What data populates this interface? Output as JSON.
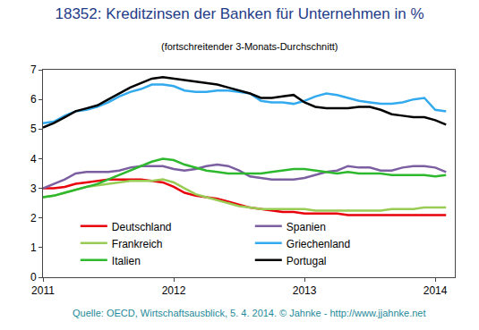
{
  "chart_data": {
    "type": "line",
    "title": "18352: Kreditzinsen der Banken für Unternehmen in %",
    "subtitle": "(fortschreitender 3-Monats-Durchschnitt)",
    "source": "Quelle: OECD, Wirtschaftsausblick, 5. 4. 2014. © Jahnke - http://www.jjahnke.net",
    "x": [
      2011,
      2011.083,
      2011.167,
      2011.25,
      2011.333,
      2011.417,
      2011.5,
      2011.583,
      2011.667,
      2011.75,
      2011.833,
      2011.917,
      2012,
      2012.083,
      2012.167,
      2012.25,
      2012.333,
      2012.417,
      2012.5,
      2012.583,
      2012.667,
      2012.75,
      2012.833,
      2012.917,
      2013,
      2013.083,
      2013.167,
      2013.25,
      2013.333,
      2013.417,
      2013.5,
      2013.583,
      2013.667,
      2013.75,
      2013.833,
      2013.917,
      2014,
      2014.083
    ],
    "series": [
      {
        "name": "Deutschland",
        "color": "#e8000b",
        "values": [
          3.0,
          3.0,
          3.05,
          3.15,
          3.2,
          3.25,
          3.3,
          3.3,
          3.3,
          3.3,
          3.25,
          3.2,
          3.05,
          2.85,
          2.75,
          2.7,
          2.65,
          2.55,
          2.45,
          2.35,
          2.3,
          2.25,
          2.2,
          2.2,
          2.15,
          2.15,
          2.15,
          2.15,
          2.1,
          2.1,
          2.1,
          2.1,
          2.1,
          2.1,
          2.1,
          2.1,
          2.1,
          2.1
        ]
      },
      {
        "name": "Spanien",
        "color": "#7b5fa0",
        "values": [
          3.0,
          3.15,
          3.3,
          3.5,
          3.55,
          3.55,
          3.55,
          3.6,
          3.7,
          3.75,
          3.75,
          3.75,
          3.65,
          3.6,
          3.65,
          3.75,
          3.8,
          3.75,
          3.6,
          3.4,
          3.35,
          3.3,
          3.3,
          3.3,
          3.35,
          3.45,
          3.55,
          3.6,
          3.75,
          3.7,
          3.7,
          3.6,
          3.6,
          3.7,
          3.75,
          3.75,
          3.7,
          3.55
        ]
      },
      {
        "name": "Frankreich",
        "color": "#99cc55",
        "values": [
          2.7,
          2.75,
          2.85,
          2.95,
          3.05,
          3.1,
          3.15,
          3.2,
          3.25,
          3.25,
          3.25,
          3.3,
          3.2,
          3.0,
          2.8,
          2.7,
          2.6,
          2.5,
          2.4,
          2.35,
          2.3,
          2.3,
          2.3,
          2.3,
          2.3,
          2.25,
          2.25,
          2.25,
          2.25,
          2.25,
          2.25,
          2.25,
          2.3,
          2.3,
          2.3,
          2.35,
          2.35,
          2.35
        ]
      },
      {
        "name": "Griechenland",
        "color": "#33aaee",
        "values": [
          5.2,
          5.25,
          5.45,
          5.6,
          5.65,
          5.75,
          5.9,
          6.1,
          6.25,
          6.35,
          6.5,
          6.5,
          6.45,
          6.3,
          6.25,
          6.25,
          6.3,
          6.3,
          6.25,
          6.2,
          5.95,
          5.9,
          5.9,
          5.85,
          5.95,
          6.1,
          6.2,
          6.15,
          6.05,
          5.95,
          5.9,
          5.85,
          5.85,
          5.9,
          6.0,
          6.05,
          5.65,
          5.6
        ]
      },
      {
        "name": "Italien",
        "color": "#2eb82e",
        "values": [
          2.7,
          2.75,
          2.85,
          2.95,
          3.05,
          3.15,
          3.3,
          3.45,
          3.6,
          3.75,
          3.9,
          4.0,
          3.95,
          3.8,
          3.7,
          3.6,
          3.55,
          3.5,
          3.5,
          3.5,
          3.5,
          3.55,
          3.6,
          3.65,
          3.65,
          3.6,
          3.55,
          3.5,
          3.55,
          3.5,
          3.5,
          3.5,
          3.45,
          3.45,
          3.45,
          3.45,
          3.4,
          3.45
        ]
      },
      {
        "name": "Portugal",
        "color": "#000000",
        "values": [
          5.05,
          5.2,
          5.4,
          5.6,
          5.7,
          5.8,
          6.0,
          6.2,
          6.4,
          6.55,
          6.7,
          6.75,
          6.7,
          6.65,
          6.6,
          6.55,
          6.5,
          6.4,
          6.3,
          6.2,
          6.05,
          6.05,
          6.1,
          6.15,
          5.9,
          5.75,
          5.7,
          5.7,
          5.7,
          5.75,
          5.75,
          5.65,
          5.5,
          5.45,
          5.4,
          5.4,
          5.3,
          5.15
        ]
      }
    ],
    "xlim": [
      2011,
      2014.15
    ],
    "xticks": [
      2011,
      2012,
      2013,
      2014
    ],
    "ylim": [
      0,
      7
    ],
    "yticks": [
      0,
      1,
      2,
      3,
      4,
      5,
      6,
      7
    ],
    "grid": false,
    "legend": "lower center"
  }
}
